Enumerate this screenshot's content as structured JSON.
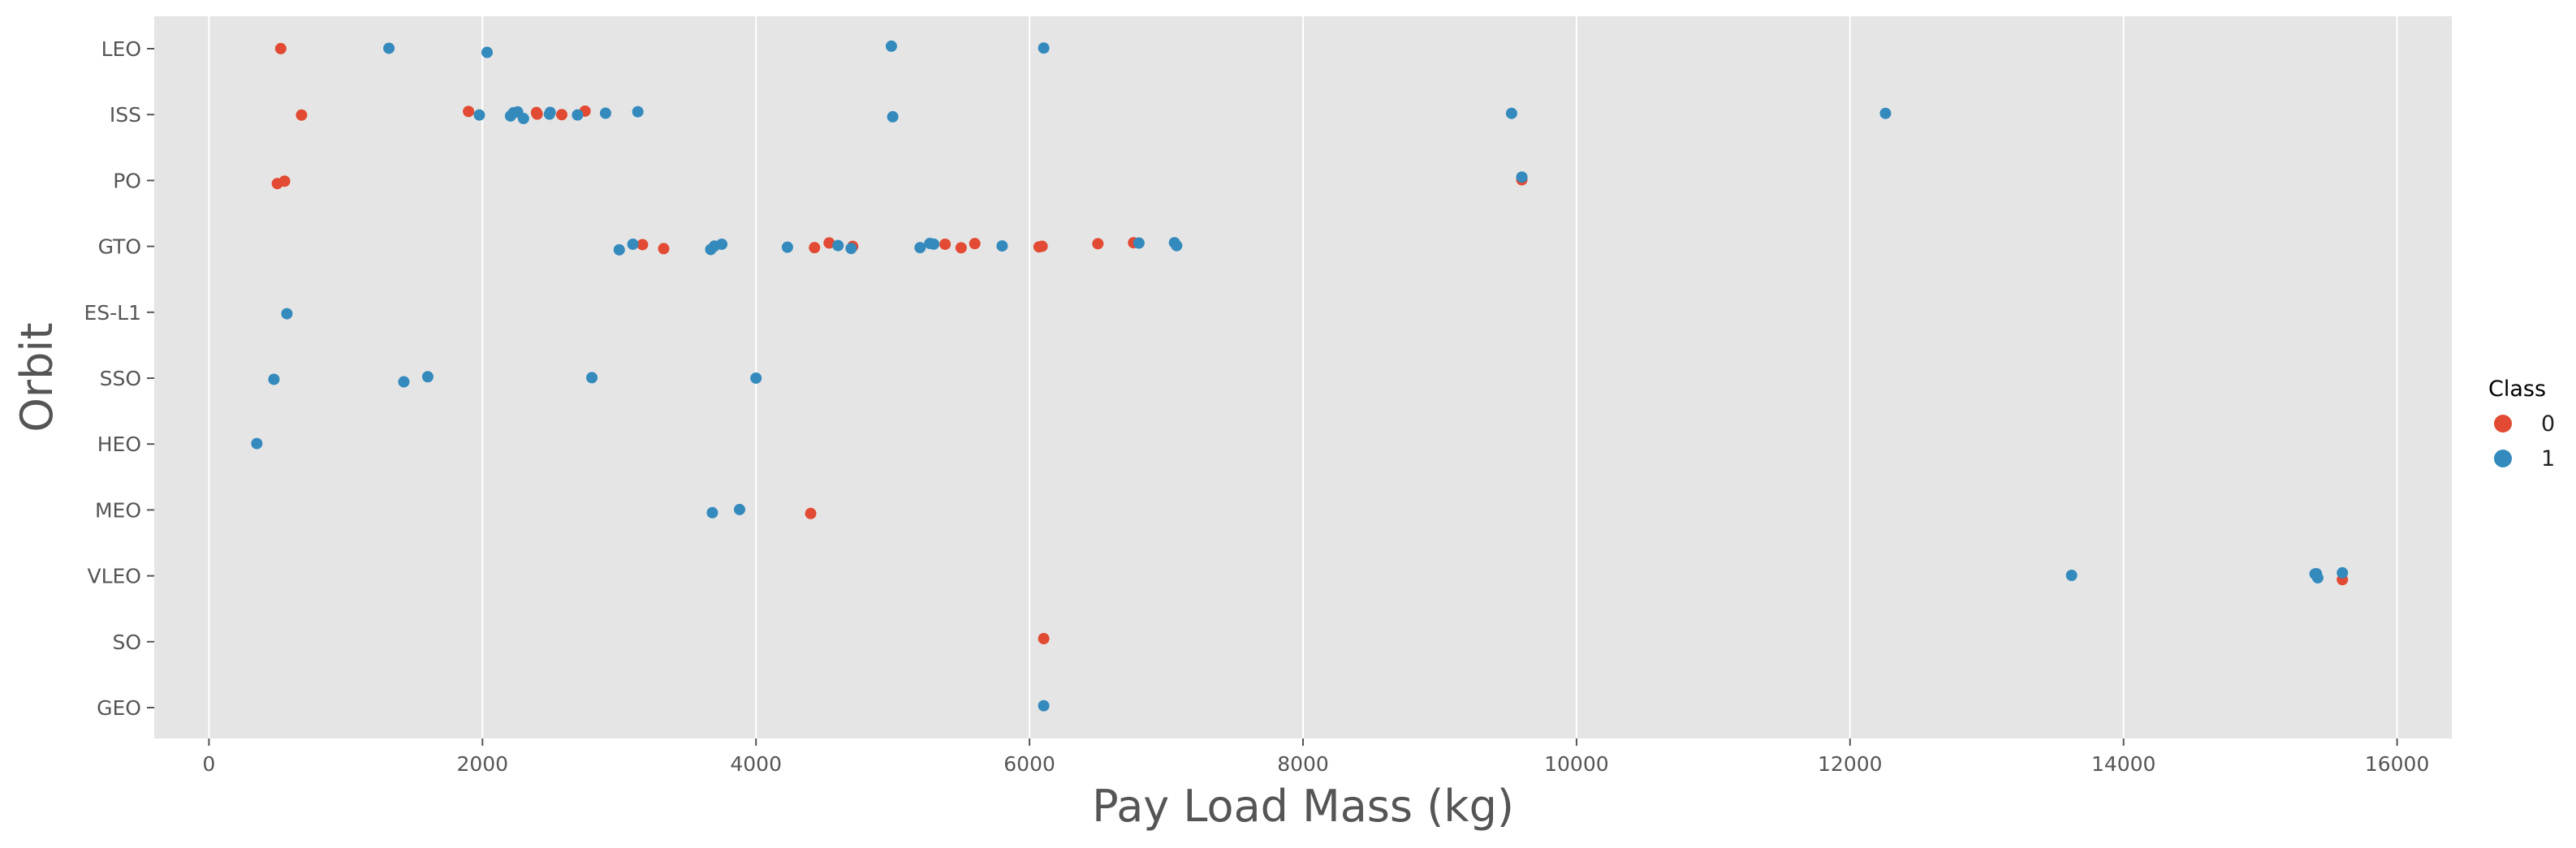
{
  "chart_data": {
    "type": "scatter",
    "xlabel": "Pay Load Mass (kg)",
    "ylabel": "Orbit",
    "xlim": [
      -400,
      16400
    ],
    "x_ticks": [
      0,
      2000,
      4000,
      6000,
      8000,
      10000,
      12000,
      14000,
      16000
    ],
    "y_categories": [
      "LEO",
      "ISS",
      "PO",
      "GTO",
      "ES-L1",
      "SSO",
      "HEO",
      "MEO",
      "VLEO",
      "SO",
      "GEO"
    ],
    "grid": true,
    "legend": {
      "title": "Class",
      "placement": "outside-right",
      "entries": [
        {
          "label": "0",
          "color": "#E24A33"
        },
        {
          "label": "1",
          "color": "#348ABD"
        }
      ]
    },
    "series": [
      {
        "name": "0",
        "color": "#E24A33",
        "points": [
          {
            "x": 525,
            "y": "LEO"
          },
          {
            "x": 677,
            "y": "ISS"
          },
          {
            "x": 1898,
            "y": "ISS"
          },
          {
            "x": 2395,
            "y": "ISS"
          },
          {
            "x": 2400,
            "y": "ISS"
          },
          {
            "x": 2580,
            "y": "ISS"
          },
          {
            "x": 2750,
            "y": "ISS"
          },
          {
            "x": 500,
            "y": "PO"
          },
          {
            "x": 553,
            "y": "PO"
          },
          {
            "x": 9600,
            "y": "PO"
          },
          {
            "x": 3170,
            "y": "GTO"
          },
          {
            "x": 3325,
            "y": "GTO"
          },
          {
            "x": 4428,
            "y": "GTO"
          },
          {
            "x": 4535,
            "y": "GTO"
          },
          {
            "x": 4707,
            "y": "GTO"
          },
          {
            "x": 5383,
            "y": "GTO"
          },
          {
            "x": 5500,
            "y": "GTO"
          },
          {
            "x": 5600,
            "y": "GTO"
          },
          {
            "x": 6070,
            "y": "GTO"
          },
          {
            "x": 6092,
            "y": "GTO"
          },
          {
            "x": 6500,
            "y": "GTO"
          },
          {
            "x": 6761,
            "y": "GTO"
          },
          {
            "x": 4400,
            "y": "MEO"
          },
          {
            "x": 15600,
            "y": "VLEO"
          },
          {
            "x": 6104,
            "y": "SO"
          }
        ]
      },
      {
        "name": "1",
        "color": "#348ABD",
        "points": [
          {
            "x": 1316,
            "y": "LEO"
          },
          {
            "x": 2034,
            "y": "LEO"
          },
          {
            "x": 4990,
            "y": "LEO"
          },
          {
            "x": 6104,
            "y": "LEO"
          },
          {
            "x": 1977,
            "y": "ISS"
          },
          {
            "x": 2205,
            "y": "ISS"
          },
          {
            "x": 2227,
            "y": "ISS"
          },
          {
            "x": 2257,
            "y": "ISS"
          },
          {
            "x": 2300,
            "y": "ISS"
          },
          {
            "x": 2490,
            "y": "ISS"
          },
          {
            "x": 2495,
            "y": "ISS"
          },
          {
            "x": 2695,
            "y": "ISS"
          },
          {
            "x": 2900,
            "y": "ISS"
          },
          {
            "x": 3136,
            "y": "ISS"
          },
          {
            "x": 5000,
            "y": "ISS"
          },
          {
            "x": 9525,
            "y": "ISS"
          },
          {
            "x": 12259,
            "y": "ISS"
          },
          {
            "x": 9600,
            "y": "PO"
          },
          {
            "x": 3000,
            "y": "GTO"
          },
          {
            "x": 3100,
            "y": "GTO"
          },
          {
            "x": 3669,
            "y": "GTO"
          },
          {
            "x": 3696,
            "y": "GTO"
          },
          {
            "x": 3750,
            "y": "GTO"
          },
          {
            "x": 4230,
            "y": "GTO"
          },
          {
            "x": 4600,
            "y": "GTO"
          },
          {
            "x": 4696,
            "y": "GTO"
          },
          {
            "x": 5200,
            "y": "GTO"
          },
          {
            "x": 5271,
            "y": "GTO"
          },
          {
            "x": 5300,
            "y": "GTO"
          },
          {
            "x": 5800,
            "y": "GTO"
          },
          {
            "x": 6800,
            "y": "GTO"
          },
          {
            "x": 7060,
            "y": "GTO"
          },
          {
            "x": 7076,
            "y": "GTO"
          },
          {
            "x": 570,
            "y": "ES-L1"
          },
          {
            "x": 475,
            "y": "SSO"
          },
          {
            "x": 1425,
            "y": "SSO"
          },
          {
            "x": 1600,
            "y": "SSO"
          },
          {
            "x": 2800,
            "y": "SSO"
          },
          {
            "x": 4000,
            "y": "SSO"
          },
          {
            "x": 350,
            "y": "HEO"
          },
          {
            "x": 3681,
            "y": "MEO"
          },
          {
            "x": 3880,
            "y": "MEO"
          },
          {
            "x": 13620,
            "y": "VLEO"
          },
          {
            "x": 15400,
            "y": "VLEO"
          },
          {
            "x": 15410,
            "y": "VLEO"
          },
          {
            "x": 15420,
            "y": "VLEO"
          },
          {
            "x": 15600,
            "y": "VLEO"
          },
          {
            "x": 6104,
            "y": "GEO"
          }
        ]
      }
    ]
  }
}
